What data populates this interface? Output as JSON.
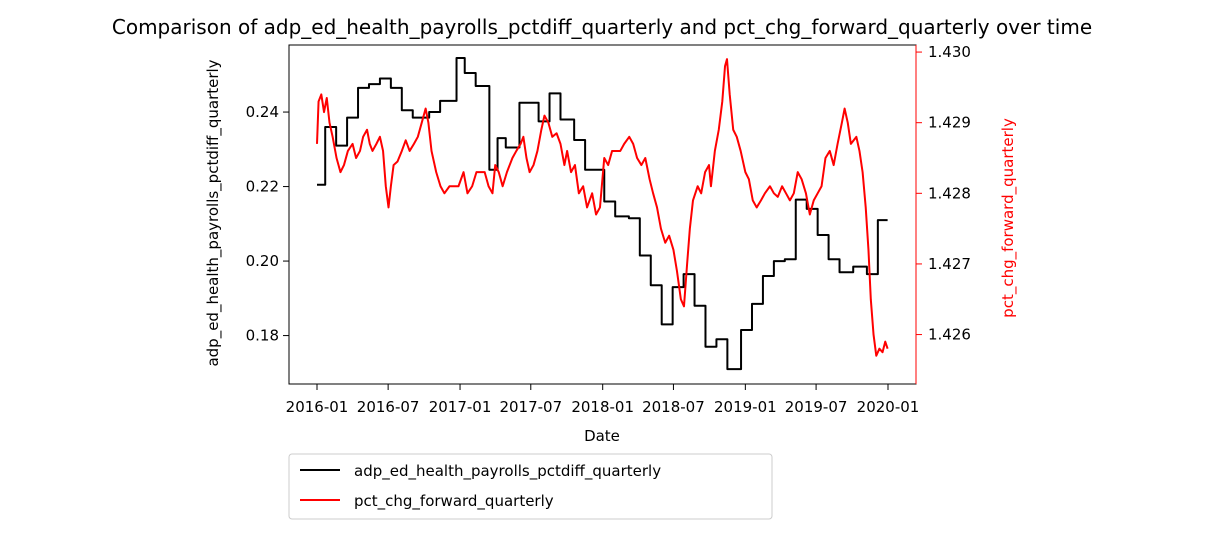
{
  "chart_data": {
    "type": "line",
    "title": "Comparison of adp_ed_health_payrolls_pctdiff_quarterly and pct_chg_forward_quarterly over time",
    "xlabel": "Date",
    "ylabel_left": "adp_ed_health_payrolls_pctdiff_quarterly",
    "ylabel_right": "pct_chg_forward_quarterly",
    "x_ticks": [
      "2016-01",
      "2016-07",
      "2017-01",
      "2017-07",
      "2018-01",
      "2018-07",
      "2019-01",
      "2019-07",
      "2020-01"
    ],
    "y_left_ticks": [
      "0.18",
      "0.20",
      "0.22",
      "0.24"
    ],
    "y_right_ticks": [
      "1.426",
      "1.427",
      "1.428",
      "1.429",
      "1.430"
    ],
    "y_left_range": [
      0.167,
      0.258
    ],
    "y_right_range": [
      1.4253,
      1.4301
    ],
    "legend_position": "below",
    "colors": {
      "left_series": "#000000",
      "right_series": "#ff0000",
      "right_axis": "#ff0000"
    },
    "series": [
      {
        "name": "adp_ed_health_payrolls_pctdiff_quarterly",
        "axis": "left",
        "color": "#000000",
        "step": true,
        "points": [
          [
            "2016-01-01",
            0.2205
          ],
          [
            "2016-01-22",
            0.236
          ],
          [
            "2016-02-19",
            0.231
          ],
          [
            "2016-03-18",
            0.2385
          ],
          [
            "2016-04-15",
            0.2465
          ],
          [
            "2016-05-13",
            0.2475
          ],
          [
            "2016-06-10",
            0.249
          ],
          [
            "2016-07-08",
            0.2465
          ],
          [
            "2016-08-05",
            0.2405
          ],
          [
            "2016-09-02",
            0.2385
          ],
          [
            "2016-10-14",
            0.24
          ],
          [
            "2016-11-11",
            0.243
          ],
          [
            "2016-12-23",
            0.2545
          ],
          [
            "2017-01-13",
            0.2505
          ],
          [
            "2017-02-10",
            0.247
          ],
          [
            "2017-03-17",
            0.2245
          ],
          [
            "2017-04-07",
            0.233
          ],
          [
            "2017-04-28",
            0.2305
          ],
          [
            "2017-06-02",
            0.2425
          ],
          [
            "2017-07-21",
            0.2375
          ],
          [
            "2017-08-18",
            0.245
          ],
          [
            "2017-09-15",
            0.238
          ],
          [
            "2017-10-20",
            0.2325
          ],
          [
            "2017-11-17",
            0.2245
          ],
          [
            "2018-01-05",
            0.216
          ],
          [
            "2018-02-02",
            0.212
          ],
          [
            "2018-03-09",
            0.2115
          ],
          [
            "2018-04-06",
            0.2015
          ],
          [
            "2018-05-04",
            0.1935
          ],
          [
            "2018-06-01",
            0.183
          ],
          [
            "2018-06-29",
            0.193
          ],
          [
            "2018-07-27",
            0.1965
          ],
          [
            "2018-08-24",
            0.188
          ],
          [
            "2018-09-21",
            0.177
          ],
          [
            "2018-10-19",
            0.179
          ],
          [
            "2018-11-16",
            0.171
          ],
          [
            "2018-12-21",
            0.1815
          ],
          [
            "2019-01-18",
            0.1885
          ],
          [
            "2019-02-15",
            0.196
          ],
          [
            "2019-03-15",
            0.2
          ],
          [
            "2019-04-12",
            0.2005
          ],
          [
            "2019-05-10",
            0.2165
          ],
          [
            "2019-06-07",
            0.214
          ],
          [
            "2019-07-05",
            0.207
          ],
          [
            "2019-08-02",
            0.2005
          ],
          [
            "2019-08-30",
            0.197
          ],
          [
            "2019-10-04",
            0.1985
          ],
          [
            "2019-11-08",
            0.1965
          ],
          [
            "2019-12-06",
            0.211
          ],
          [
            "2019-12-31",
            0.211
          ]
        ]
      },
      {
        "name": "pct_chg_forward_quarterly",
        "axis": "right",
        "color": "#ff0000",
        "step": false,
        "points": [
          [
            "2016-01-01",
            1.4287
          ],
          [
            "2016-01-05",
            1.4293
          ],
          [
            "2016-01-12",
            1.4294
          ],
          [
            "2016-01-19",
            1.42915
          ],
          [
            "2016-01-26",
            1.42935
          ],
          [
            "2016-02-02",
            1.429
          ],
          [
            "2016-02-10",
            1.4288
          ],
          [
            "2016-02-20",
            1.4285
          ],
          [
            "2016-03-01",
            1.4283
          ],
          [
            "2016-03-10",
            1.4284
          ],
          [
            "2016-03-20",
            1.4286
          ],
          [
            "2016-04-01",
            1.4287
          ],
          [
            "2016-04-10",
            1.4285
          ],
          [
            "2016-04-20",
            1.4286
          ],
          [
            "2016-04-28",
            1.4288
          ],
          [
            "2016-05-08",
            1.4289
          ],
          [
            "2016-05-15",
            1.4287
          ],
          [
            "2016-05-22",
            1.4286
          ],
          [
            "2016-06-01",
            1.4287
          ],
          [
            "2016-06-10",
            1.4288
          ],
          [
            "2016-06-18",
            1.4286
          ],
          [
            "2016-06-25",
            1.4281
          ],
          [
            "2016-07-02",
            1.4278
          ],
          [
            "2016-07-08",
            1.4281
          ],
          [
            "2016-07-15",
            1.4284
          ],
          [
            "2016-07-25",
            1.42845
          ],
          [
            "2016-08-05",
            1.4286
          ],
          [
            "2016-08-15",
            1.42875
          ],
          [
            "2016-08-25",
            1.4286
          ],
          [
            "2016-09-05",
            1.4287
          ],
          [
            "2016-09-15",
            1.4288
          ],
          [
            "2016-09-25",
            1.429
          ],
          [
            "2016-10-05",
            1.4292
          ],
          [
            "2016-10-12",
            1.429
          ],
          [
            "2016-10-20",
            1.4286
          ],
          [
            "2016-11-01",
            1.4283
          ],
          [
            "2016-11-12",
            1.4281
          ],
          [
            "2016-11-22",
            1.428
          ],
          [
            "2016-12-05",
            1.4281
          ],
          [
            "2016-12-15",
            1.4281
          ],
          [
            "2016-12-28",
            1.4281
          ],
          [
            "2017-01-10",
            1.4283
          ],
          [
            "2017-01-20",
            1.428
          ],
          [
            "2017-02-01",
            1.4281
          ],
          [
            "2017-02-12",
            1.4283
          ],
          [
            "2017-02-22",
            1.4283
          ],
          [
            "2017-03-05",
            1.4283
          ],
          [
            "2017-03-15",
            1.4281
          ],
          [
            "2017-03-25",
            1.428
          ],
          [
            "2017-04-01",
            1.4284
          ],
          [
            "2017-04-10",
            1.4283
          ],
          [
            "2017-04-20",
            1.4281
          ],
          [
            "2017-05-01",
            1.4283
          ],
          [
            "2017-05-15",
            1.4285
          ],
          [
            "2017-05-25",
            1.4286
          ],
          [
            "2017-06-05",
            1.4287
          ],
          [
            "2017-06-12",
            1.4288
          ],
          [
            "2017-06-20",
            1.4285
          ],
          [
            "2017-06-28",
            1.4283
          ],
          [
            "2017-07-08",
            1.4284
          ],
          [
            "2017-07-18",
            1.4286
          ],
          [
            "2017-07-28",
            1.4289
          ],
          [
            "2017-08-05",
            1.4291
          ],
          [
            "2017-08-15",
            1.429
          ],
          [
            "2017-08-25",
            1.4288
          ],
          [
            "2017-09-05",
            1.42885
          ],
          [
            "2017-09-15",
            1.4287
          ],
          [
            "2017-09-25",
            1.4284
          ],
          [
            "2017-10-02",
            1.4286
          ],
          [
            "2017-10-12",
            1.4283
          ],
          [
            "2017-10-22",
            1.4284
          ],
          [
            "2017-11-01",
            1.428
          ],
          [
            "2017-11-12",
            1.4281
          ],
          [
            "2017-11-22",
            1.4278
          ],
          [
            "2017-12-05",
            1.428
          ],
          [
            "2017-12-15",
            1.4277
          ],
          [
            "2017-12-25",
            1.4278
          ],
          [
            "2018-01-05",
            1.4285
          ],
          [
            "2018-01-15",
            1.4284
          ],
          [
            "2018-01-25",
            1.4286
          ],
          [
            "2018-02-05",
            1.4286
          ],
          [
            "2018-02-15",
            1.4286
          ],
          [
            "2018-02-25",
            1.4287
          ],
          [
            "2018-03-10",
            1.4288
          ],
          [
            "2018-03-20",
            1.4287
          ],
          [
            "2018-03-30",
            1.4285
          ],
          [
            "2018-04-10",
            1.4284
          ],
          [
            "2018-04-20",
            1.4285
          ],
          [
            "2018-05-01",
            1.4282
          ],
          [
            "2018-05-10",
            1.428
          ],
          [
            "2018-05-20",
            1.4278
          ],
          [
            "2018-05-30",
            1.4275
          ],
          [
            "2018-06-10",
            1.4273
          ],
          [
            "2018-06-20",
            1.4274
          ],
          [
            "2018-07-01",
            1.4272
          ],
          [
            "2018-07-10",
            1.4269
          ],
          [
            "2018-07-20",
            1.4265
          ],
          [
            "2018-07-28",
            1.4264
          ],
          [
            "2018-08-05",
            1.427
          ],
          [
            "2018-08-12",
            1.4275
          ],
          [
            "2018-08-20",
            1.4279
          ],
          [
            "2018-09-01",
            1.4281
          ],
          [
            "2018-09-10",
            1.428
          ],
          [
            "2018-09-20",
            1.4283
          ],
          [
            "2018-09-30",
            1.4284
          ],
          [
            "2018-10-05",
            1.4281
          ],
          [
            "2018-10-15",
            1.4286
          ],
          [
            "2018-10-25",
            1.4289
          ],
          [
            "2018-11-03",
            1.4293
          ],
          [
            "2018-11-10",
            1.4298
          ],
          [
            "2018-11-15",
            1.4299
          ],
          [
            "2018-11-22",
            1.4294
          ],
          [
            "2018-12-01",
            1.4289
          ],
          [
            "2018-12-10",
            1.4288
          ],
          [
            "2018-12-20",
            1.4286
          ],
          [
            "2019-01-01",
            1.4283
          ],
          [
            "2019-01-10",
            1.4282
          ],
          [
            "2019-01-20",
            1.4279
          ],
          [
            "2019-01-30",
            1.4278
          ],
          [
            "2019-02-10",
            1.4279
          ],
          [
            "2019-02-20",
            1.428
          ],
          [
            "2019-03-05",
            1.4281
          ],
          [
            "2019-03-15",
            1.428
          ],
          [
            "2019-03-25",
            1.42795
          ],
          [
            "2019-04-05",
            1.4281
          ],
          [
            "2019-04-15",
            1.428
          ],
          [
            "2019-04-25",
            1.4279
          ],
          [
            "2019-05-05",
            1.428
          ],
          [
            "2019-05-15",
            1.4283
          ],
          [
            "2019-05-25",
            1.4282
          ],
          [
            "2019-06-05",
            1.428
          ],
          [
            "2019-06-15",
            1.4277
          ],
          [
            "2019-06-25",
            1.4279
          ],
          [
            "2019-07-05",
            1.428
          ],
          [
            "2019-07-15",
            1.4281
          ],
          [
            "2019-07-25",
            1.4285
          ],
          [
            "2019-08-05",
            1.4286
          ],
          [
            "2019-08-15",
            1.4284
          ],
          [
            "2019-08-25",
            1.4287
          ],
          [
            "2019-09-05",
            1.429
          ],
          [
            "2019-09-12",
            1.4292
          ],
          [
            "2019-09-20",
            1.429
          ],
          [
            "2019-09-28",
            1.4287
          ],
          [
            "2019-10-05",
            1.42875
          ],
          [
            "2019-10-12",
            1.4288
          ],
          [
            "2019-10-20",
            1.4286
          ],
          [
            "2019-10-28",
            1.4283
          ],
          [
            "2019-11-05",
            1.4278
          ],
          [
            "2019-11-12",
            1.4272
          ],
          [
            "2019-11-18",
            1.4265
          ],
          [
            "2019-11-25",
            1.426
          ],
          [
            "2019-12-02",
            1.4257
          ],
          [
            "2019-12-10",
            1.4258
          ],
          [
            "2019-12-18",
            1.42575
          ],
          [
            "2019-12-25",
            1.4259
          ],
          [
            "2019-12-31",
            1.4258
          ]
        ]
      }
    ]
  }
}
